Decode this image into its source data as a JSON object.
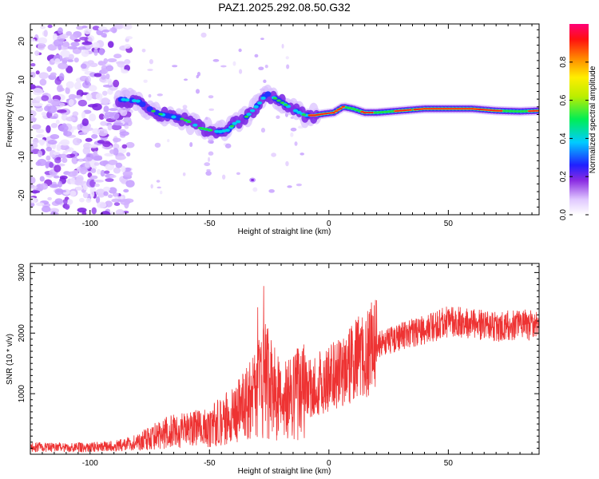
{
  "page": {
    "title": "PAZ1.2025.292.08.50.G32"
  },
  "chart_data": [
    {
      "type": "heatmap",
      "title": "PAZ1.2025.292.08.50.G32",
      "xlabel": "Height of straight line (km)",
      "ylabel": "Frequency (Hz)",
      "xlim": [
        -125,
        88
      ],
      "ylim": [
        -25,
        24.5
      ],
      "xticks": [
        -100,
        -50,
        0,
        50
      ],
      "yticks": [
        -20,
        -10,
        0,
        10,
        20
      ],
      "colorbar": {
        "label": "Normalized spectral amplitude",
        "range": [
          0.0,
          1.0
        ],
        "ticks": [
          0.0,
          0.2,
          0.4,
          0.6,
          0.8
        ]
      },
      "ridge": {
        "description": "dominant frequency track (km, Hz)",
        "points": [
          [
            -88,
            5
          ],
          [
            -80,
            4.5
          ],
          [
            -74,
            2
          ],
          [
            -70,
            1
          ],
          [
            -66,
            0.5
          ],
          [
            -62,
            0
          ],
          [
            -58,
            -1
          ],
          [
            -54,
            -2.5
          ],
          [
            -50,
            -3
          ],
          [
            -46,
            -3.5
          ],
          [
            -42,
            -3
          ],
          [
            -39,
            -1
          ],
          [
            -36,
            -0.5
          ],
          [
            -32,
            2
          ],
          [
            -29,
            4
          ],
          [
            -26,
            6.5
          ],
          [
            -22,
            5
          ],
          [
            -18,
            3.5
          ],
          [
            -14,
            2
          ],
          [
            -10,
            0.8
          ],
          [
            -6,
            0.8
          ],
          [
            -2,
            1.2
          ],
          [
            2,
            1.5
          ],
          [
            6,
            3
          ],
          [
            10,
            2.5
          ],
          [
            15,
            1.5
          ],
          [
            20,
            1.5
          ],
          [
            30,
            2
          ],
          [
            40,
            2.5
          ],
          [
            50,
            2.5
          ],
          [
            60,
            2.5
          ],
          [
            70,
            2
          ],
          [
            80,
            1.8
          ],
          [
            88,
            2
          ]
        ]
      }
    },
    {
      "type": "line",
      "xlabel": "Height of straight line (km)",
      "ylabel": "SNR (10 * v/v)",
      "xlim": [
        -125,
        88
      ],
      "ylim": [
        0,
        3150
      ],
      "xticks": [
        -100,
        -50,
        0,
        50
      ],
      "yticks": [
        1000,
        2000,
        3000
      ],
      "line_color": "#ee3333",
      "envelope": {
        "description": "approximate mean SNR trend (km, SNR)",
        "points": [
          [
            -125,
            120
          ],
          [
            -110,
            110
          ],
          [
            -100,
            120
          ],
          [
            -90,
            130
          ],
          [
            -80,
            200
          ],
          [
            -70,
            350
          ],
          [
            -60,
            400
          ],
          [
            -50,
            450
          ],
          [
            -40,
            650
          ],
          [
            -32,
            900
          ],
          [
            -27,
            1300
          ],
          [
            -24,
            1100
          ],
          [
            -20,
            800
          ],
          [
            -15,
            950
          ],
          [
            -10,
            1050
          ],
          [
            -5,
            1150
          ],
          [
            0,
            1250
          ],
          [
            5,
            1350
          ],
          [
            10,
            1500
          ],
          [
            15,
            1650
          ],
          [
            20,
            1800
          ],
          [
            30,
            1950
          ],
          [
            40,
            2050
          ],
          [
            50,
            2200
          ],
          [
            60,
            2150
          ],
          [
            70,
            2100
          ],
          [
            80,
            2150
          ],
          [
            88,
            2100
          ]
        ]
      }
    }
  ]
}
